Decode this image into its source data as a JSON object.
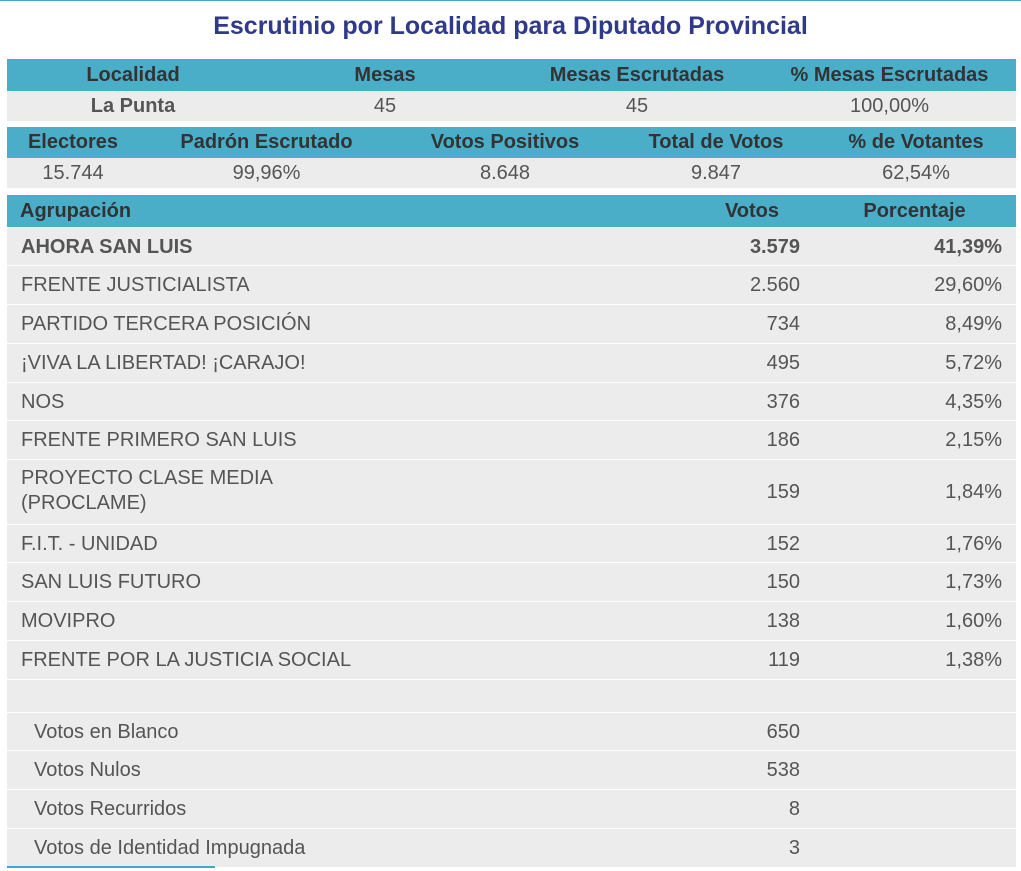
{
  "title": "Escrutinio por Localidad para Diputado Provincial",
  "table1": {
    "headers": [
      "Localidad",
      "Mesas",
      "Mesas Escrutadas",
      "% Mesas Escrutadas"
    ],
    "values": [
      "La Punta",
      "45",
      "45",
      "100,00%"
    ]
  },
  "table2": {
    "headers": [
      "Electores",
      "Padrón Escrutado",
      "Votos Positivos",
      "Total de Votos",
      "% de Votantes"
    ],
    "values": [
      "15.744",
      "99,96%",
      "8.648",
      "9.847",
      "62,54%"
    ]
  },
  "table3": {
    "headers": [
      "Agrupación",
      "Votos",
      "Porcentaje"
    ],
    "rows": [
      {
        "name": "AHORA SAN LUIS",
        "votes": "3.579",
        "pct": "41,39%"
      },
      {
        "name": "FRENTE JUSTICIALISTA",
        "votes": "2.560",
        "pct": "29,60%"
      },
      {
        "name": "PARTIDO TERCERA POSICIÓN",
        "votes": "734",
        "pct": "8,49%"
      },
      {
        "name": "¡VIVA LA LIBERTAD! ¡CARAJO!",
        "votes": "495",
        "pct": "5,72%"
      },
      {
        "name": "NOS",
        "votes": "376",
        "pct": "4,35%"
      },
      {
        "name": "FRENTE PRIMERO SAN LUIS",
        "votes": "186",
        "pct": "2,15%"
      },
      {
        "name_line1": "PROYECTO CLASE MEDIA",
        "name_line2": "(PROCLAME)",
        "votes": "159",
        "pct": "1,84%"
      },
      {
        "name": "F.I.T. - UNIDAD",
        "votes": "152",
        "pct": "1,76%"
      },
      {
        "name": "SAN LUIS FUTURO",
        "votes": "150",
        "pct": "1,73%"
      },
      {
        "name": "MOVIPRO",
        "votes": "138",
        "pct": "1,60%"
      },
      {
        "name": "FRENTE POR LA JUSTICIA SOCIAL",
        "votes": "119",
        "pct": "1,38%"
      }
    ],
    "other": [
      {
        "name": "Votos en Blanco",
        "votes": "650"
      },
      {
        "name": "Votos Nulos",
        "votes": "538"
      },
      {
        "name": "Votos Recurridos",
        "votes": "8"
      },
      {
        "name": "Votos de Identidad Impugnada",
        "votes": "3"
      }
    ]
  },
  "colors": {
    "header": "#4aaec9",
    "row": "#ececec",
    "title": "#2f3a8a"
  }
}
